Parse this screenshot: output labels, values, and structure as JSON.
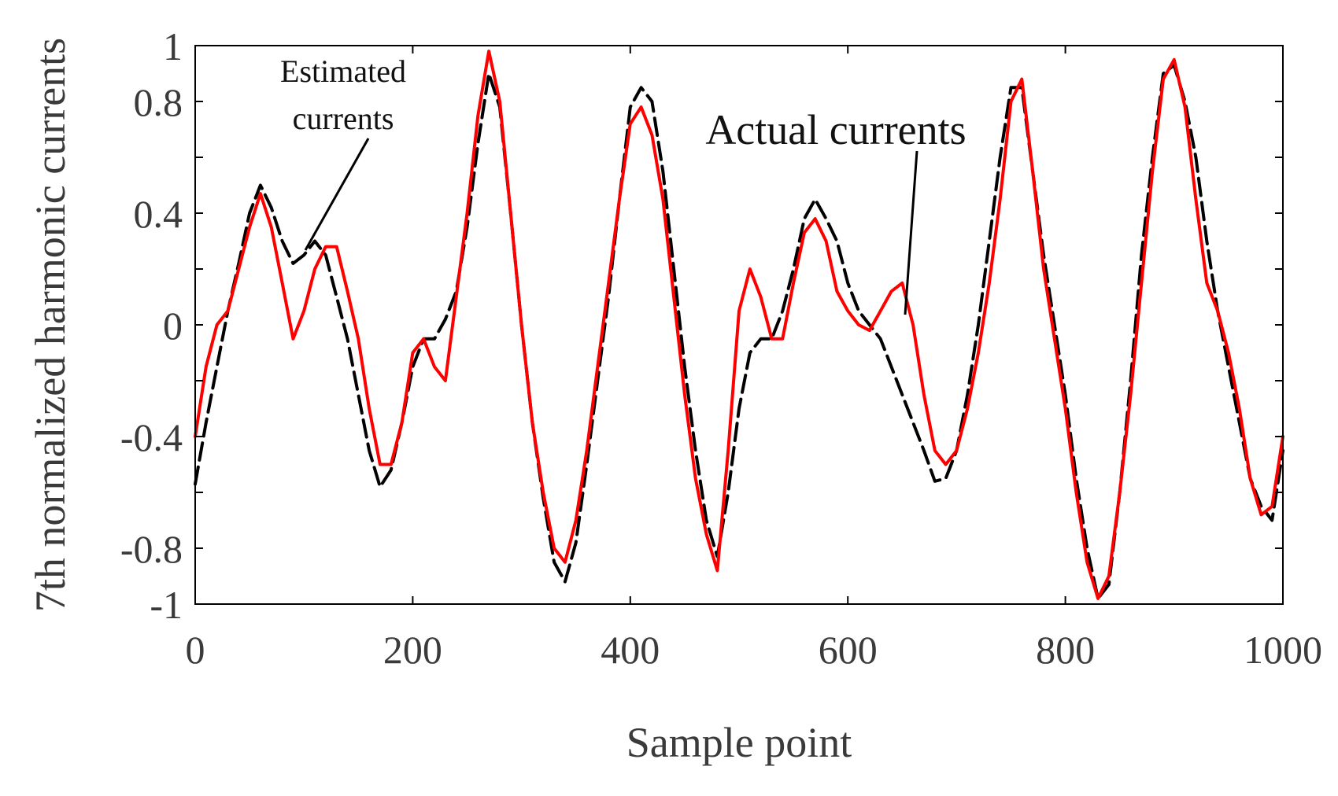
{
  "chart_data": {
    "type": "line",
    "xlabel": "Sample point",
    "ylabel": "7th normalized harmonic currents",
    "xlim": [
      0,
      1000
    ],
    "ylim": [
      -1,
      1
    ],
    "xticks": [
      0,
      200,
      400,
      600,
      800,
      1000
    ],
    "yticks": [
      -1,
      -0.8,
      -0.4,
      0,
      0.4,
      0.8,
      1
    ],
    "xtick_labels": [
      "0",
      "200",
      "400",
      "600",
      "800",
      "1000"
    ],
    "ytick_labels": [
      "-1",
      "-0.8",
      "-0.4",
      "0",
      "0.4",
      "0.8",
      "1"
    ],
    "grid": false,
    "annotations": {
      "estimated_line1": "Estimated",
      "estimated_line2": "currents",
      "actual": "Actual currents"
    },
    "series": [
      {
        "color": "#000000",
        "style": "dashed",
        "x": [
          0,
          10,
          20,
          30,
          40,
          50,
          60,
          70,
          80,
          90,
          100,
          110,
          120,
          130,
          140,
          150,
          160,
          170,
          180,
          190,
          200,
          210,
          220,
          230,
          240,
          250,
          260,
          270,
          280,
          290,
          300,
          310,
          320,
          330,
          340,
          350,
          360,
          370,
          380,
          390,
          400,
          410,
          420,
          430,
          440,
          450,
          460,
          470,
          480,
          490,
          500,
          510,
          520,
          530,
          540,
          550,
          560,
          570,
          580,
          590,
          600,
          610,
          620,
          630,
          640,
          650,
          660,
          670,
          680,
          690,
          700,
          710,
          720,
          730,
          740,
          750,
          760,
          770,
          780,
          790,
          800,
          810,
          820,
          830,
          840,
          850,
          860,
          870,
          880,
          890,
          900,
          910,
          920,
          930,
          940,
          950,
          960,
          970,
          980,
          990,
          1000
        ],
        "values": [
          -0.57,
          -0.35,
          -0.15,
          0.05,
          0.22,
          0.4,
          0.5,
          0.42,
          0.3,
          0.22,
          0.25,
          0.3,
          0.25,
          0.1,
          -0.05,
          -0.25,
          -0.45,
          -0.58,
          -0.52,
          -0.35,
          -0.15,
          -0.05,
          -0.05,
          0.02,
          0.12,
          0.35,
          0.65,
          0.9,
          0.78,
          0.4,
          0.0,
          -0.35,
          -0.62,
          -0.85,
          -0.92,
          -0.78,
          -0.5,
          -0.2,
          0.1,
          0.45,
          0.78,
          0.85,
          0.8,
          0.55,
          0.2,
          -0.15,
          -0.45,
          -0.7,
          -0.83,
          -0.6,
          -0.3,
          -0.1,
          -0.05,
          -0.05,
          0.05,
          0.2,
          0.38,
          0.45,
          0.38,
          0.3,
          0.15,
          0.05,
          0.0,
          -0.05,
          -0.15,
          -0.25,
          -0.35,
          -0.45,
          -0.56,
          -0.55,
          -0.45,
          -0.25,
          0.0,
          0.3,
          0.6,
          0.85,
          0.85,
          0.55,
          0.25,
          0.0,
          -0.25,
          -0.55,
          -0.8,
          -0.98,
          -0.93,
          -0.6,
          -0.2,
          0.25,
          0.6,
          0.9,
          0.93,
          0.8,
          0.6,
          0.3,
          0.05,
          -0.15,
          -0.35,
          -0.55,
          -0.65,
          -0.7,
          -0.45
        ]
      },
      {
        "color": "#ff0000",
        "style": "solid",
        "x": [
          0,
          10,
          20,
          30,
          40,
          50,
          60,
          70,
          80,
          90,
          100,
          110,
          120,
          130,
          140,
          150,
          160,
          170,
          180,
          190,
          200,
          210,
          220,
          230,
          240,
          250,
          260,
          270,
          280,
          290,
          300,
          310,
          320,
          330,
          340,
          350,
          360,
          370,
          380,
          390,
          400,
          410,
          420,
          430,
          440,
          450,
          460,
          470,
          480,
          490,
          500,
          510,
          520,
          530,
          540,
          550,
          560,
          570,
          580,
          590,
          600,
          610,
          620,
          630,
          640,
          650,
          660,
          670,
          680,
          690,
          700,
          710,
          720,
          730,
          740,
          750,
          760,
          770,
          780,
          790,
          800,
          810,
          820,
          830,
          840,
          850,
          860,
          870,
          880,
          890,
          900,
          910,
          920,
          930,
          940,
          950,
          960,
          970,
          980,
          990,
          1000
        ],
        "values": [
          -0.4,
          -0.15,
          0.0,
          0.05,
          0.2,
          0.35,
          0.47,
          0.35,
          0.15,
          -0.05,
          0.05,
          0.2,
          0.28,
          0.28,
          0.12,
          -0.05,
          -0.3,
          -0.5,
          -0.5,
          -0.35,
          -0.1,
          -0.05,
          -0.15,
          -0.2,
          0.1,
          0.4,
          0.75,
          0.98,
          0.8,
          0.4,
          0.0,
          -0.35,
          -0.6,
          -0.8,
          -0.85,
          -0.7,
          -0.45,
          -0.15,
          0.15,
          0.45,
          0.72,
          0.78,
          0.68,
          0.45,
          0.1,
          -0.25,
          -0.55,
          -0.75,
          -0.88,
          -0.45,
          0.05,
          0.2,
          0.1,
          -0.05,
          -0.05,
          0.15,
          0.33,
          0.38,
          0.3,
          0.12,
          0.05,
          0.0,
          -0.02,
          0.05,
          0.12,
          0.15,
          0.0,
          -0.25,
          -0.45,
          -0.5,
          -0.45,
          -0.3,
          -0.1,
          0.15,
          0.45,
          0.8,
          0.88,
          0.55,
          0.2,
          -0.05,
          -0.3,
          -0.6,
          -0.85,
          -0.98,
          -0.9,
          -0.6,
          -0.25,
          0.15,
          0.55,
          0.88,
          0.95,
          0.78,
          0.45,
          0.15,
          0.05,
          -0.1,
          -0.3,
          -0.55,
          -0.68,
          -0.65,
          -0.4
        ]
      }
    ]
  }
}
